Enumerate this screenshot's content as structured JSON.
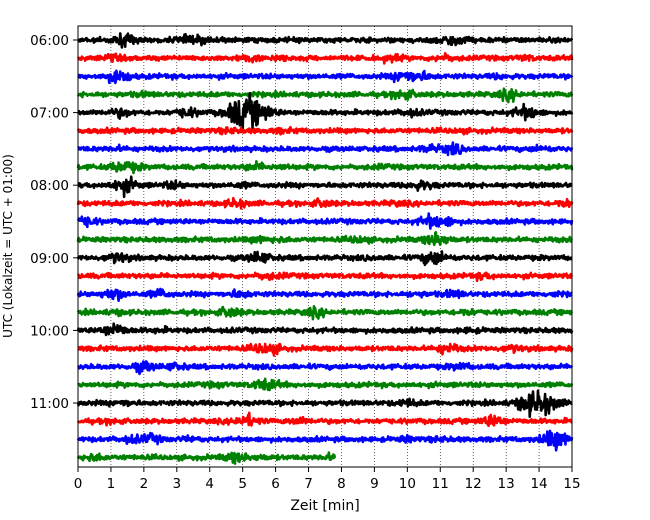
{
  "chart_data": {
    "type": "line",
    "title": "",
    "xlabel": "Zeit  [min]",
    "ylabel": "UTC (Lokalzeit = UTC + 01:00)",
    "xlim": [
      0,
      15
    ],
    "x_ticks": [
      "0",
      "1",
      "2",
      "3",
      "4",
      "5",
      "6",
      "7",
      "8",
      "9",
      "10",
      "11",
      "12",
      "13",
      "14",
      "15"
    ],
    "y_ticks": [
      "06:00",
      "07:00",
      "08:00",
      "09:00",
      "10:00",
      "11:00"
    ],
    "grid": "vertical dotted at each minute",
    "legend": "none",
    "trace_interval_minutes": 15,
    "first_trace": "06:00",
    "colors": [
      "#000000",
      "#ff0000",
      "#0000ff",
      "#008000"
    ],
    "series": [
      {
        "start": "06:00",
        "color": "#000000",
        "events": [
          [
            1.4,
            2.2
          ],
          [
            3.3,
            1.8
          ],
          [
            3.9,
            1.6
          ],
          [
            11.2,
            2.0
          ],
          [
            11.6,
            1.5
          ]
        ]
      },
      {
        "start": "06:15",
        "color": "#ff0000",
        "events": [
          [
            1.0,
            1.5
          ],
          [
            5.2,
            1.6
          ],
          [
            6.1,
            1.4
          ],
          [
            9.5,
            1.6
          ],
          [
            11.1,
            1.6
          ],
          [
            13.6,
            1.4
          ]
        ]
      },
      {
        "start": "06:30",
        "color": "#0000ff",
        "events": [
          [
            1.2,
            2.4
          ],
          [
            9.9,
            2.2
          ],
          [
            10.4,
            1.8
          ],
          [
            12.8,
            1.3
          ]
        ]
      },
      {
        "start": "06:45",
        "color": "#008000",
        "events": [
          [
            2.0,
            1.3
          ],
          [
            9.9,
            2.0
          ],
          [
            13.1,
            2.0
          ]
        ]
      },
      {
        "start": "07:00",
        "color": "#000000",
        "events": [
          [
            1.3,
            1.8
          ],
          [
            3.3,
            1.9
          ],
          [
            4.9,
            3.6
          ],
          [
            5.3,
            3.0
          ],
          [
            5.7,
            2.0
          ],
          [
            10.1,
            1.6
          ],
          [
            13.6,
            2.4
          ]
        ]
      },
      {
        "start": "07:15",
        "color": "#ff0000",
        "events": [
          [
            4.6,
            1.4
          ],
          [
            6.2,
            1.3
          ],
          [
            11.5,
            1.2
          ]
        ]
      },
      {
        "start": "07:30",
        "color": "#0000ff",
        "events": [
          [
            1.2,
            1.3
          ],
          [
            10.7,
            1.6
          ],
          [
            11.4,
            2.0
          ],
          [
            14.0,
            1.4
          ]
        ]
      },
      {
        "start": "07:45",
        "color": "#008000",
        "events": [
          [
            1.3,
            2.0
          ],
          [
            1.7,
            1.5
          ],
          [
            5.4,
            1.7
          ],
          [
            6.2,
            1.3
          ],
          [
            9.2,
            1.2
          ]
        ]
      },
      {
        "start": "08:00",
        "color": "#000000",
        "events": [
          [
            1.4,
            2.6
          ],
          [
            2.9,
            1.6
          ],
          [
            5.0,
            1.3
          ],
          [
            10.3,
            1.6
          ],
          [
            10.6,
            1.4
          ]
        ]
      },
      {
        "start": "08:15",
        "color": "#ff0000",
        "events": [
          [
            4.8,
            1.8
          ],
          [
            7.4,
            1.7
          ],
          [
            9.7,
            1.3
          ],
          [
            14.8,
            1.7
          ]
        ]
      },
      {
        "start": "08:30",
        "color": "#0000ff",
        "events": [
          [
            0.2,
            2.0
          ],
          [
            10.7,
            2.2
          ],
          [
            11.2,
            1.8
          ]
        ]
      },
      {
        "start": "08:45",
        "color": "#008000",
        "events": [
          [
            5.5,
            1.5
          ],
          [
            6.1,
            1.3
          ],
          [
            8.5,
            1.6
          ],
          [
            10.9,
            2.4
          ]
        ]
      },
      {
        "start": "09:00",
        "color": "#000000",
        "events": [
          [
            1.2,
            2.0
          ],
          [
            5.5,
            2.2
          ],
          [
            8.9,
            1.2
          ],
          [
            10.8,
            2.6
          ]
        ]
      },
      {
        "start": "09:15",
        "color": "#ff0000",
        "events": [
          [
            5.7,
            1.5
          ],
          [
            6.2,
            1.2
          ],
          [
            12.3,
            1.5
          ]
        ]
      },
      {
        "start": "09:30",
        "color": "#0000ff",
        "events": [
          [
            1.1,
            2.2
          ],
          [
            2.5,
            1.8
          ],
          [
            4.9,
            1.7
          ],
          [
            10.3,
            1.3
          ],
          [
            11.4,
            1.7
          ],
          [
            14.4,
            1.2
          ]
        ]
      },
      {
        "start": "09:45",
        "color": "#008000",
        "events": [
          [
            1.2,
            1.3
          ],
          [
            4.6,
            2.0
          ],
          [
            7.2,
            1.8
          ],
          [
            11.8,
            1.5
          ]
        ]
      },
      {
        "start": "10:00",
        "color": "#000000",
        "events": [
          [
            1.1,
            2.4
          ],
          [
            2.5,
            1.3
          ],
          [
            11.9,
            1.3
          ]
        ]
      },
      {
        "start": "10:15",
        "color": "#ff0000",
        "events": [
          [
            5.6,
            2.0
          ],
          [
            6.0,
            1.5
          ],
          [
            11.2,
            2.0
          ],
          [
            13.2,
            1.6
          ]
        ]
      },
      {
        "start": "10:30",
        "color": "#0000ff",
        "events": [
          [
            2.0,
            2.0
          ],
          [
            2.9,
            1.6
          ],
          [
            11.6,
            1.6
          ]
        ]
      },
      {
        "start": "10:45",
        "color": "#008000",
        "events": [
          [
            4.2,
            1.3
          ],
          [
            5.6,
            2.0
          ],
          [
            6.0,
            1.4
          ]
        ]
      },
      {
        "start": "11:00",
        "color": "#000000",
        "events": [
          [
            1.4,
            1.5
          ],
          [
            10.0,
            1.6
          ],
          [
            13.7,
            3.0
          ],
          [
            14.2,
            3.0
          ]
        ]
      },
      {
        "start": "11:15",
        "color": "#ff0000",
        "events": [
          [
            1.1,
            1.3
          ],
          [
            5.1,
            2.2
          ],
          [
            6.7,
            1.6
          ],
          [
            12.6,
            2.2
          ]
        ]
      },
      {
        "start": "11:30",
        "color": "#0000ff",
        "events": [
          [
            1.6,
            1.6
          ],
          [
            2.2,
            1.8
          ],
          [
            3.4,
            1.3
          ],
          [
            10.0,
            1.4
          ],
          [
            11.0,
            1.3
          ],
          [
            14.5,
            3.0
          ]
        ]
      },
      {
        "start": "11:45",
        "color": "#008000",
        "events": [
          [
            0.5,
            1.6
          ],
          [
            4.8,
            2.0
          ],
          [
            5.5,
            1.3
          ],
          [
            7.7,
            1.5
          ]
        ],
        "end_minute": 7.8
      }
    ]
  }
}
